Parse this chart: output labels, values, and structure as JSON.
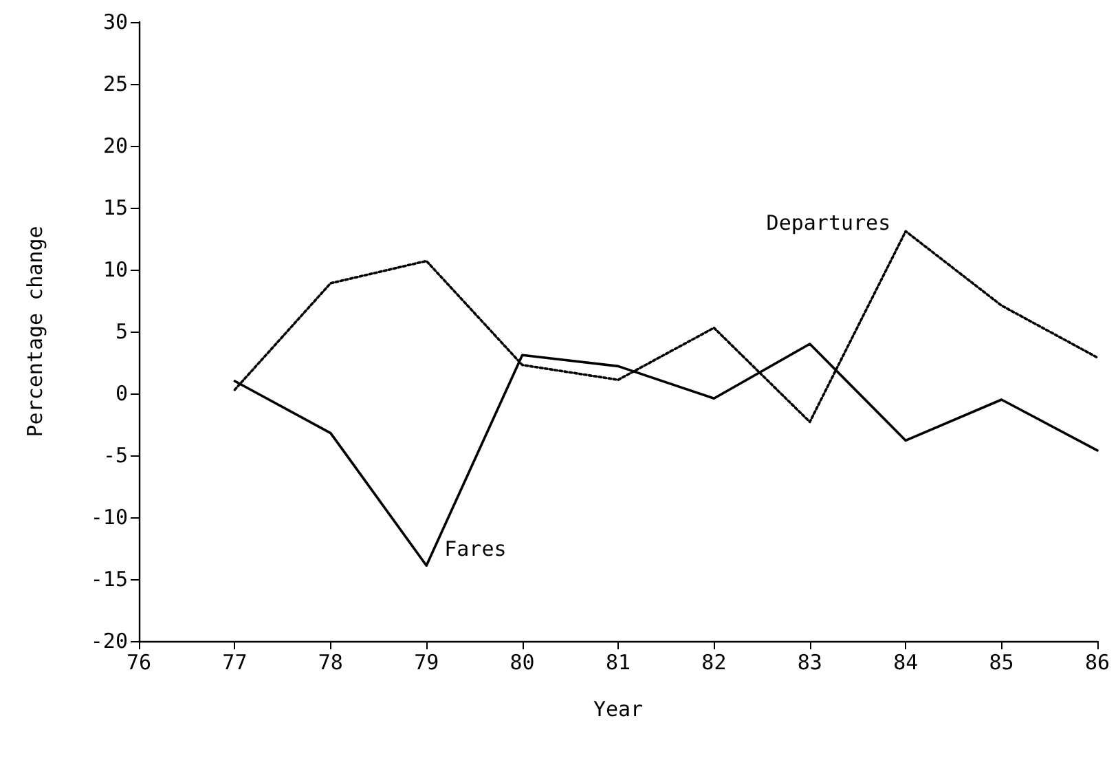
{
  "chart_data": {
    "type": "line",
    "xlabel": "Year",
    "ylabel": "Percentage change",
    "x": [
      77,
      78,
      79,
      80,
      81,
      82,
      83,
      84,
      85,
      86
    ],
    "series": [
      {
        "name": "Fares",
        "color": "#000000",
        "line_style": "solid",
        "values": [
          1.0,
          -3.2,
          -13.9,
          3.1,
          2.2,
          -0.4,
          4.0,
          -3.8,
          -0.5,
          -4.6
        ]
      },
      {
        "name": "Departures",
        "color": "#000000",
        "line_style": "dotted",
        "values": [
          0.3,
          8.9,
          10.7,
          2.3,
          1.1,
          5.3,
          -2.3,
          13.1,
          7.1,
          2.9
        ]
      }
    ],
    "xlim": [
      76,
      86
    ],
    "xticks": [
      76,
      77,
      78,
      79,
      80,
      81,
      82,
      83,
      84,
      85,
      86
    ],
    "ylim": [
      -20,
      30
    ],
    "yticks": [
      -20,
      -15,
      -10,
      -5,
      0,
      5,
      10,
      15,
      20,
      25,
      30
    ],
    "grid": false,
    "marker": "none"
  }
}
